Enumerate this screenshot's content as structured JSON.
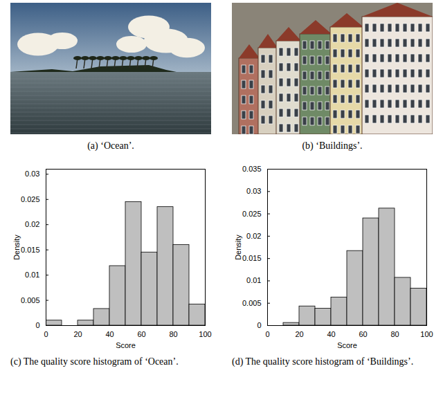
{
  "images": [
    {
      "caption": "(a) ‘Ocean’."
    },
    {
      "caption": "(b) ‘Buildings’."
    }
  ],
  "chart_data": [
    {
      "type": "histogram",
      "caption": "(c) The quality score histogram of ‘Ocean’.",
      "x_label": "Score",
      "y_label": "Density",
      "bins": [
        0,
        10,
        20,
        30,
        40,
        50,
        60,
        70,
        80,
        90,
        100
      ],
      "values": [
        0.001,
        0,
        0.001,
        0.0033,
        0.0118,
        0.0245,
        0.0145,
        0.0235,
        0.016,
        0.0042
      ],
      "color": "#bfbfbf",
      "xlim": [
        0,
        100
      ],
      "xticks": [
        0,
        20,
        40,
        60,
        80,
        100
      ],
      "ylim": [
        0,
        0.031
      ],
      "yticks": [
        0,
        0.005,
        0.01,
        0.015,
        0.02,
        0.025,
        0.03
      ],
      "grid": false
    },
    {
      "type": "histogram",
      "caption": "(d) The quality score histogram of ‘Buildings’.",
      "x_label": "Score",
      "y_label": "Density",
      "bins": [
        0,
        10,
        20,
        30,
        40,
        50,
        60,
        70,
        80,
        90,
        100
      ],
      "values": [
        0,
        0.0006,
        0.0043,
        0.0038,
        0.0063,
        0.0167,
        0.024,
        0.0262,
        0.0107,
        0.0083
      ],
      "color": "#bfbfbf",
      "xlim": [
        0,
        100
      ],
      "xticks": [
        0,
        20,
        40,
        60,
        80,
        100
      ],
      "ylim": [
        0,
        0.035
      ],
      "yticks": [
        0,
        0.005,
        0.01,
        0.015,
        0.02,
        0.025,
        0.03,
        0.035
      ],
      "grid": false
    }
  ]
}
